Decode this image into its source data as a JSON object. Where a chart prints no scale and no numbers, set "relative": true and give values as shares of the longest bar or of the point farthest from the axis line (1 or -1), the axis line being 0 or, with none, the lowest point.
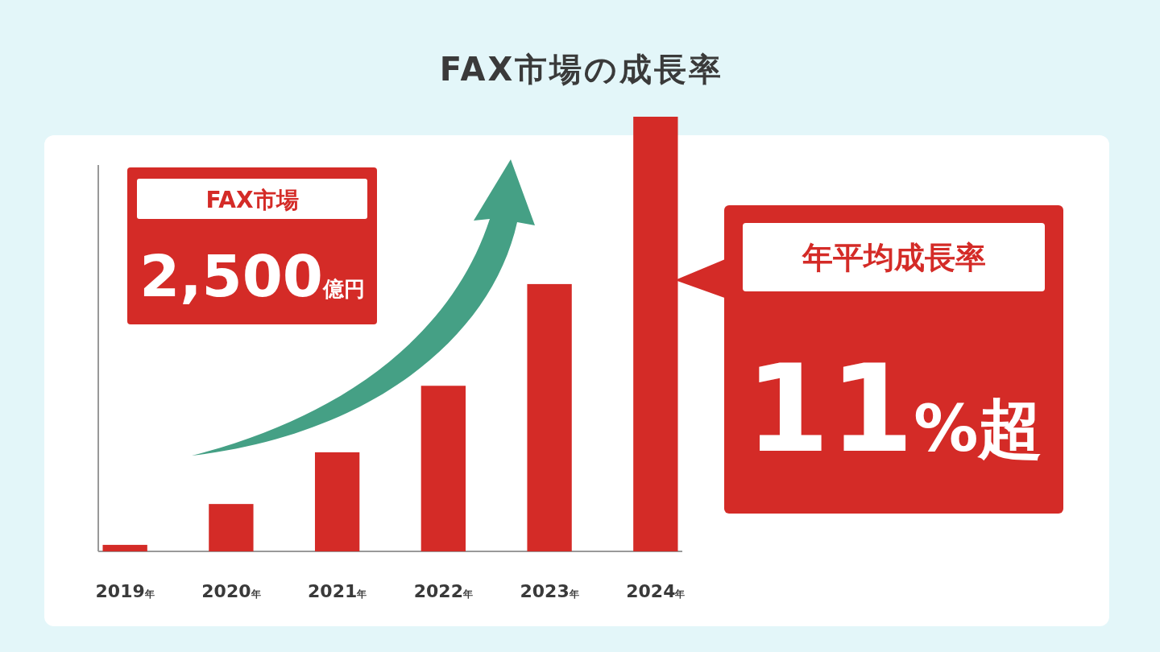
{
  "chart_data": {
    "type": "bar",
    "title": "FAX市場の成長率",
    "relative": true,
    "categories": [
      "2019年",
      "2020年",
      "2021年",
      "2022年",
      "2023年",
      "2024年"
    ],
    "values": [
      0.015,
      0.109,
      0.228,
      0.381,
      0.615,
      1
    ],
    "color": "#d42b27",
    "annotations": [
      "FAX市場",
      "2,500億円",
      "年平均成長率",
      "11%超"
    ]
  }
}
